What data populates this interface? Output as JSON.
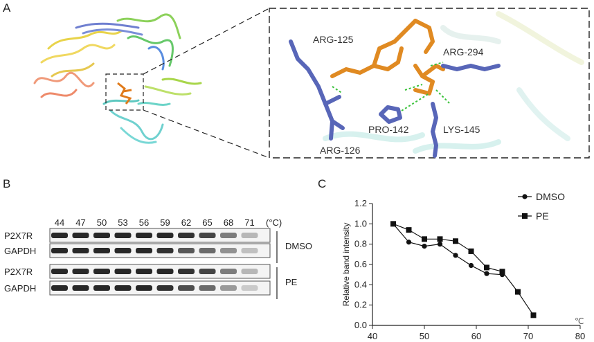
{
  "panels": {
    "a": {
      "label": "A"
    },
    "b": {
      "label": "B"
    },
    "c": {
      "label": "C"
    }
  },
  "panel_a": {
    "residues": [
      "ARG-125",
      "ARG-294",
      "PRO-142",
      "LYS-145",
      "ARG-126"
    ]
  },
  "panel_b": {
    "temperatures": [
      "44",
      "47",
      "50",
      "53",
      "56",
      "59",
      "62",
      "65",
      "68",
      "71"
    ],
    "unit": "(°C)",
    "groups": [
      {
        "name": "DMSO",
        "rows": [
          "P2X7R",
          "GAPDH"
        ]
      },
      {
        "name": "PE",
        "rows": [
          "P2X7R",
          "GAPDH"
        ]
      }
    ]
  },
  "chart_data": {
    "type": "line",
    "ylabel": "Relative band intensity",
    "xlabel": "",
    "x_unit": "℃",
    "xlim": [
      40,
      80
    ],
    "ylim": [
      0,
      1.2
    ],
    "xticks": [
      40,
      50,
      60,
      70,
      80
    ],
    "yticks": [
      "0.0",
      "0.2",
      "0.4",
      "0.6",
      "0.8",
      "1.0",
      "1.2"
    ],
    "legend_position": "top-right",
    "series": [
      {
        "name": "DMSO",
        "marker": "circle",
        "x": [
          44,
          47,
          50,
          53,
          56,
          59,
          62,
          65
        ],
        "y": [
          1.0,
          0.82,
          0.78,
          0.8,
          0.69,
          0.59,
          0.51,
          0.5
        ]
      },
      {
        "name": "PE",
        "marker": "square",
        "x": [
          44,
          47,
          50,
          53,
          56,
          59,
          62,
          65,
          68,
          71
        ],
        "y": [
          1.0,
          0.94,
          0.85,
          0.85,
          0.83,
          0.73,
          0.57,
          0.53,
          0.33,
          0.1
        ]
      }
    ]
  }
}
